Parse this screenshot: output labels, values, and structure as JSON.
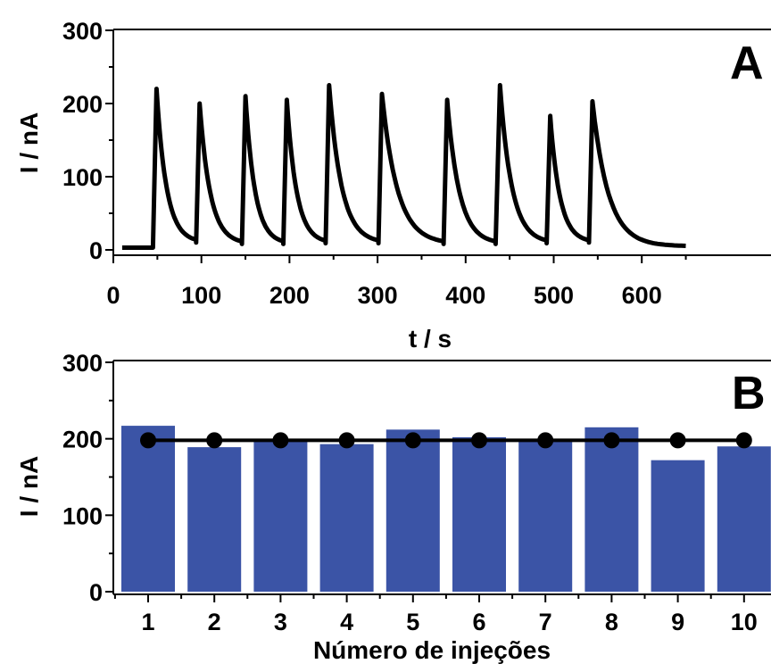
{
  "chart_data": [
    {
      "type": "line",
      "panel_label": "A",
      "xlabel": "t / s",
      "ylabel": "I / nA",
      "xlim": [
        0,
        650
      ],
      "ylim": [
        -10,
        300
      ],
      "xticks": [
        "0",
        "100",
        "200",
        "300",
        "400",
        "500",
        "600"
      ],
      "yticks": [
        "0",
        "100",
        "200",
        "300"
      ],
      "grid": false,
      "series_color": "#000000",
      "peaks": [
        {
          "t_rise": 45,
          "t_peak": 49,
          "peak": 220,
          "end": 10
        },
        {
          "t_rise": 94,
          "t_peak": 98,
          "peak": 200,
          "end": 8
        },
        {
          "t_rise": 146,
          "t_peak": 150,
          "peak": 210,
          "end": 8
        },
        {
          "t_rise": 193,
          "t_peak": 197,
          "peak": 205,
          "end": 9
        },
        {
          "t_rise": 241,
          "t_peak": 245,
          "peak": 225,
          "end": 9
        },
        {
          "t_rise": 301,
          "t_peak": 305,
          "peak": 213,
          "end": 8
        },
        {
          "t_rise": 375,
          "t_peak": 379,
          "peak": 205,
          "end": 8
        },
        {
          "t_rise": 434,
          "t_peak": 439,
          "peak": 225,
          "end": 9
        },
        {
          "t_rise": 492,
          "t_peak": 496,
          "peak": 183,
          "end": 10
        },
        {
          "t_rise": 540,
          "t_peak": 544,
          "peak": 203,
          "end": 5
        }
      ],
      "baseline": 3,
      "t_start": 10,
      "t_end": 650
    },
    {
      "type": "bar",
      "panel_label": "B",
      "xlabel": "Número de injeções",
      "ylabel": "I / nA",
      "categories": [
        "1",
        "2",
        "3",
        "4",
        "5",
        "6",
        "7",
        "8",
        "9",
        "10"
      ],
      "values": [
        217,
        189,
        199,
        193,
        212,
        202,
        200,
        215,
        172,
        190
      ],
      "mean_values": [
        198,
        198,
        198,
        198,
        198,
        198,
        198,
        198,
        198,
        198
      ],
      "ylim": [
        0,
        300
      ],
      "yticks": [
        "0",
        "100",
        "200",
        "300"
      ],
      "grid": false,
      "bar_color": "#3b54a6",
      "marker_color": "#000000"
    }
  ]
}
